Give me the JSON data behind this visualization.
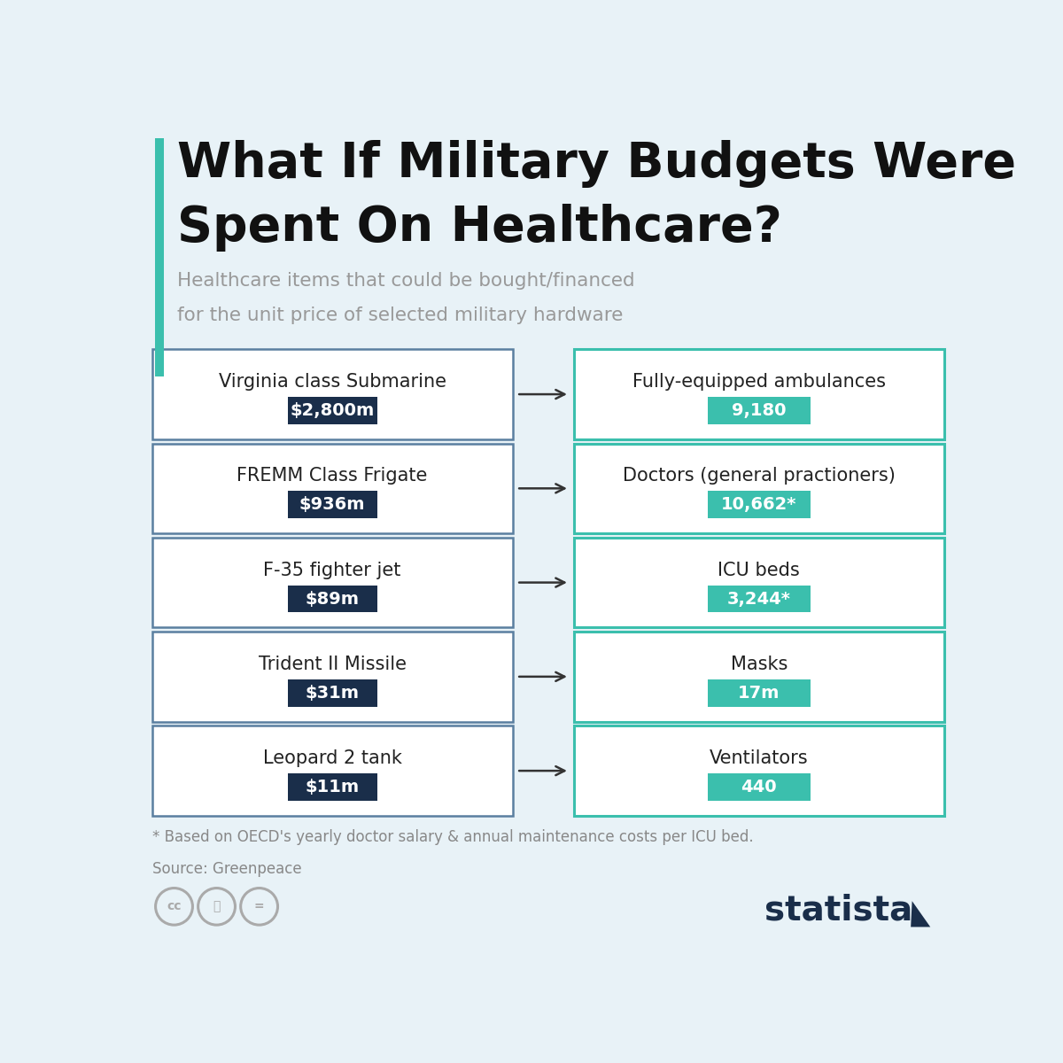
{
  "title_line1": "What If Military Budgets Were",
  "title_line2": "Spent On Healthcare?",
  "subtitle_line1": "Healthcare items that could be bought/financed",
  "subtitle_line2": "for the unit price of selected military hardware",
  "bg_color": "#e8f2f7",
  "teal_bar_color": "#3bbfad",
  "title_color": "#111111",
  "subtitle_color": "#999999",
  "military_box_bg": "#ffffff",
  "military_box_border": "#5a7fa0",
  "healthcare_box_bg": "#ffffff",
  "healthcare_box_border": "#3bbfad",
  "price_badge_color": "#1a2e4a",
  "quantity_badge_color": "#3bbfad",
  "badge_text_color": "#ffffff",
  "arrow_color": "#333333",
  "footnote_color": "#888888",
  "statista_color": "#1a2e4a",
  "military_items": [
    {
      "name": "Virginia class Submarine",
      "price": "$2,800m"
    },
    {
      "name": "FREMM Class Frigate",
      "price": "$936m"
    },
    {
      "name": "F-35 fighter jet",
      "price": "$89m"
    },
    {
      "name": "Trident II Missile",
      "price": "$31m"
    },
    {
      "name": "Leopard 2 tank",
      "price": "$11m"
    }
  ],
  "healthcare_items": [
    {
      "name": "Fully-equipped ambulances",
      "quantity": "9,180"
    },
    {
      "name": "Doctors (general practioners)",
      "quantity": "10,662*"
    },
    {
      "name": "ICU beds",
      "quantity": "3,244*"
    },
    {
      "name": "Masks",
      "quantity": "17m"
    },
    {
      "name": "Ventilators",
      "quantity": "440"
    }
  ],
  "footnote_line1": "* Based on OECD's yearly doctor salary & annual maintenance costs per ICU bed.",
  "footnote_line2": "Source: Greenpeace"
}
